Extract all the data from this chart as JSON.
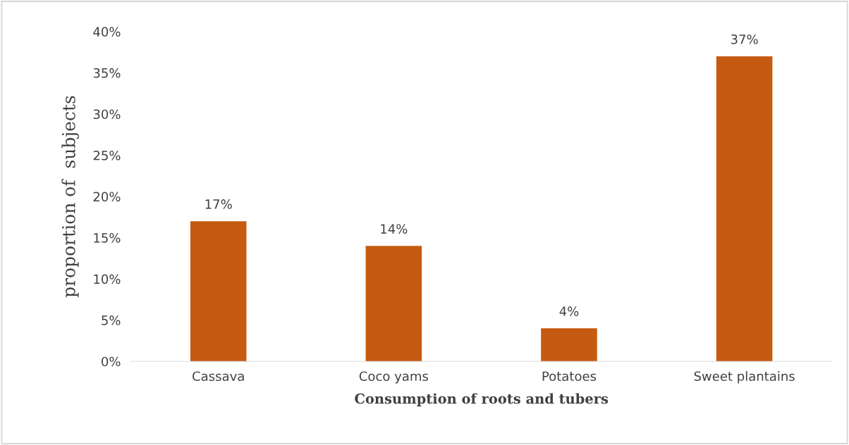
{
  "chart_data": {
    "type": "bar",
    "xlabel": "Consumption of roots and tubers",
    "ylabel": "proportion of  subjects",
    "categories": [
      "Cassava",
      "Coco yams",
      "Potatoes",
      "Sweet plantains"
    ],
    "values": [
      17,
      14,
      4,
      37
    ],
    "value_labels": [
      "17%",
      "14%",
      "4%",
      "37%"
    ],
    "color": "#c55a11",
    "ylim": [
      0,
      40
    ],
    "yticks": [
      {
        "value": 0,
        "label": "0%"
      },
      {
        "value": 5,
        "label": "5%"
      },
      {
        "value": 10,
        "label": "10%"
      },
      {
        "value": 15,
        "label": "15%"
      },
      {
        "value": 20,
        "label": "20%"
      },
      {
        "value": 25,
        "label": "25%"
      },
      {
        "value": 30,
        "label": "30%"
      },
      {
        "value": 35,
        "label": "35%"
      },
      {
        "value": 40,
        "label": "40%"
      }
    ],
    "grid": false,
    "legend": false
  }
}
